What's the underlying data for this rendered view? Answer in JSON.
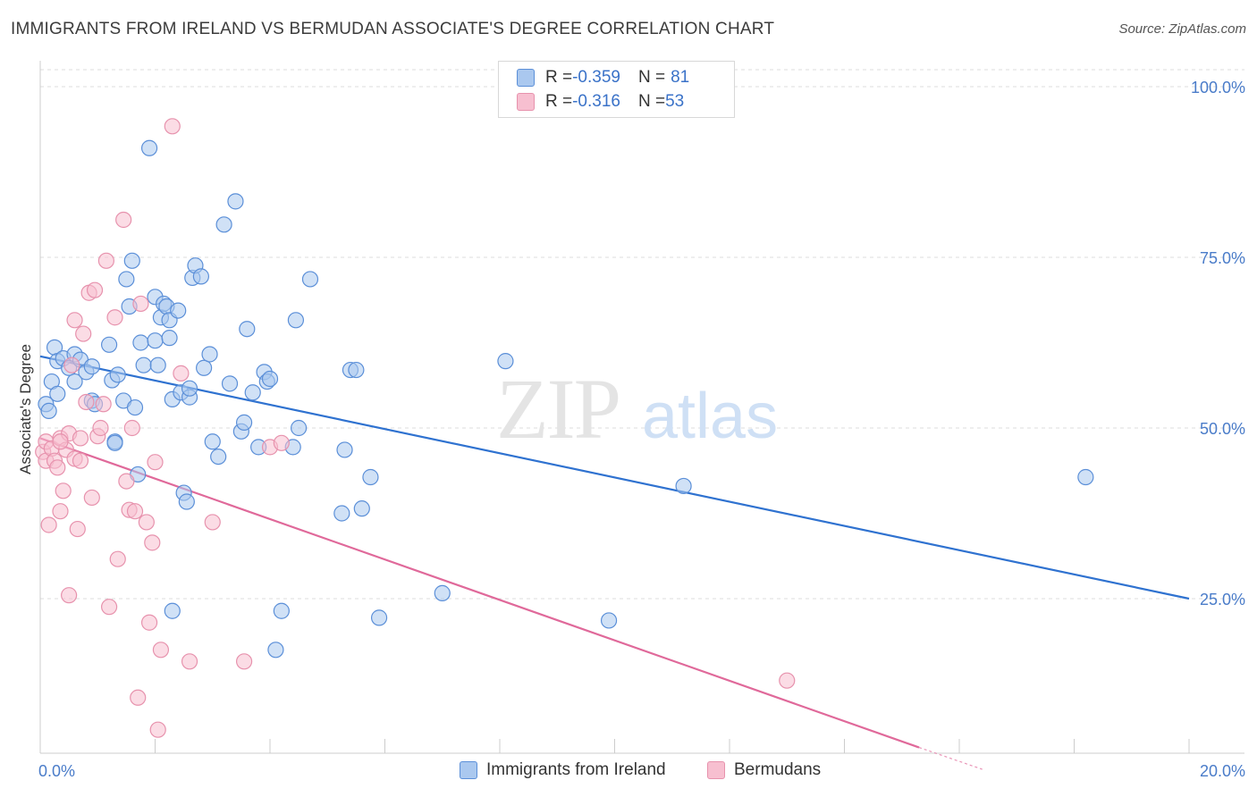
{
  "title": "IMMIGRANTS FROM IRELAND VS BERMUDAN ASSOCIATE'S DEGREE CORRELATION CHART",
  "source": "Source: ZipAtlas.com",
  "watermark": {
    "zip": "ZIP",
    "atlas": "atlas"
  },
  "colors": {
    "blue_fill": "#aac8ef",
    "blue_stroke": "#5b8fd8",
    "blue_line": "#2f72d0",
    "pink_fill": "#f7bfd0",
    "pink_stroke": "#e792ad",
    "pink_line": "#e0699a",
    "tick_text": "#4a7cc9",
    "grid": "#dcdcdc"
  },
  "legend": {
    "rows": [
      {
        "r_label": "R = ",
        "r_value": "-0.359",
        "n_label": "N = ",
        "n_value": "81"
      },
      {
        "r_label": "R = ",
        "r_value": "-0.316",
        "n_label": "N = ",
        "n_value": "53"
      }
    ]
  },
  "bottom_legend": {
    "series1": "Immigrants from Ireland",
    "series2": "Bermudans"
  },
  "chart_data": {
    "type": "scatter",
    "title": "IMMIGRANTS FROM IRELAND VS BERMUDAN ASSOCIATE'S DEGREE CORRELATION CHART",
    "xlabel": "",
    "ylabel": "Associate's Degree",
    "xlim": [
      0,
      20
    ],
    "ylim": [
      0,
      105
    ],
    "x_ticks": [
      "0.0%",
      "20.0%"
    ],
    "y_ticks": [
      {
        "value": 100,
        "label": "100.0%"
      },
      {
        "value": 75,
        "label": "75.0%"
      },
      {
        "value": 50,
        "label": "50.0%"
      },
      {
        "value": 25,
        "label": "25.0%"
      }
    ],
    "grid": true,
    "legend_position": "top-center",
    "series": [
      {
        "name": "Immigrants from Ireland",
        "color": "#5b8fd8",
        "r": -0.359,
        "n": 81,
        "trend": {
          "x": [
            0,
            20
          ],
          "y": [
            60.5,
            25.0
          ]
        },
        "points": [
          [
            0.1,
            53.5
          ],
          [
            0.15,
            52.5
          ],
          [
            0.2,
            56.8
          ],
          [
            0.25,
            61.8
          ],
          [
            0.3,
            59.8
          ],
          [
            0.3,
            55.0
          ],
          [
            0.4,
            60.2
          ],
          [
            0.5,
            58.8
          ],
          [
            0.6,
            56.8
          ],
          [
            0.6,
            60.8
          ],
          [
            0.7,
            60.0
          ],
          [
            0.8,
            58.2
          ],
          [
            0.9,
            59.0
          ],
          [
            0.9,
            54.0
          ],
          [
            0.95,
            53.5
          ],
          [
            1.2,
            62.2
          ],
          [
            1.25,
            57.0
          ],
          [
            1.3,
            48.0
          ],
          [
            1.35,
            57.8
          ],
          [
            1.3,
            47.8
          ],
          [
            1.45,
            54.0
          ],
          [
            1.5,
            71.8
          ],
          [
            1.55,
            67.8
          ],
          [
            1.6,
            74.5
          ],
          [
            1.65,
            53.0
          ],
          [
            1.7,
            43.2
          ],
          [
            1.75,
            62.5
          ],
          [
            1.8,
            59.2
          ],
          [
            1.9,
            91.0
          ],
          [
            2.0,
            62.8
          ],
          [
            2.0,
            69.2
          ],
          [
            2.05,
            59.2
          ],
          [
            2.1,
            66.2
          ],
          [
            2.15,
            68.2
          ],
          [
            2.2,
            67.8
          ],
          [
            2.25,
            63.2
          ],
          [
            2.25,
            65.8
          ],
          [
            2.3,
            54.2
          ],
          [
            2.4,
            67.2
          ],
          [
            2.45,
            55.2
          ],
          [
            2.5,
            40.5
          ],
          [
            2.55,
            39.2
          ],
          [
            2.6,
            54.5
          ],
          [
            2.6,
            55.8
          ],
          [
            2.65,
            72.0
          ],
          [
            2.7,
            73.8
          ],
          [
            2.8,
            72.2
          ],
          [
            2.85,
            58.8
          ],
          [
            2.95,
            60.8
          ],
          [
            3.0,
            48.0
          ],
          [
            3.1,
            45.8
          ],
          [
            3.2,
            79.8
          ],
          [
            3.3,
            56.5
          ],
          [
            3.4,
            83.2
          ],
          [
            3.5,
            49.5
          ],
          [
            3.55,
            50.8
          ],
          [
            3.6,
            64.5
          ],
          [
            3.7,
            55.2
          ],
          [
            3.8,
            47.2
          ],
          [
            3.9,
            58.2
          ],
          [
            3.95,
            56.8
          ],
          [
            4.0,
            57.2
          ],
          [
            4.2,
            23.2
          ],
          [
            4.1,
            17.5
          ],
          [
            4.4,
            47.2
          ],
          [
            4.45,
            65.8
          ],
          [
            4.5,
            50.0
          ],
          [
            4.7,
            71.8
          ],
          [
            5.25,
            37.5
          ],
          [
            5.3,
            46.8
          ],
          [
            5.4,
            58.5
          ],
          [
            5.5,
            58.5
          ],
          [
            5.6,
            38.2
          ],
          [
            5.75,
            42.8
          ],
          [
            2.3,
            23.2
          ],
          [
            5.9,
            22.2
          ],
          [
            7.0,
            25.8
          ],
          [
            8.1,
            59.8
          ],
          [
            9.9,
            21.8
          ],
          [
            11.2,
            41.5
          ],
          [
            18.2,
            42.8
          ]
        ]
      },
      {
        "name": "Bermudans",
        "color": "#e792ad",
        "r": -0.316,
        "n": 53,
        "trend": {
          "x": [
            0,
            15.3
          ],
          "y": [
            48.5,
            3.2
          ]
        },
        "trend_dashed": {
          "x": [
            15.3,
            16.4
          ],
          "y": [
            3.2,
            0.0
          ]
        },
        "points": [
          [
            0.05,
            46.5
          ],
          [
            0.1,
            48.0
          ],
          [
            0.1,
            45.2
          ],
          [
            0.15,
            35.8
          ],
          [
            0.2,
            47.0
          ],
          [
            0.25,
            45.2
          ],
          [
            0.3,
            44.2
          ],
          [
            0.35,
            48.5
          ],
          [
            0.35,
            37.8
          ],
          [
            0.4,
            40.8
          ],
          [
            0.45,
            46.8
          ],
          [
            0.5,
            49.2
          ],
          [
            0.55,
            59.2
          ],
          [
            0.6,
            65.8
          ],
          [
            0.65,
            35.2
          ],
          [
            0.7,
            48.5
          ],
          [
            0.75,
            63.8
          ],
          [
            0.8,
            53.8
          ],
          [
            0.85,
            69.8
          ],
          [
            0.9,
            39.8
          ],
          [
            0.95,
            70.2
          ],
          [
            1.0,
            48.8
          ],
          [
            1.05,
            50.0
          ],
          [
            1.1,
            53.5
          ],
          [
            1.15,
            74.5
          ],
          [
            1.2,
            23.8
          ],
          [
            1.3,
            66.2
          ],
          [
            1.35,
            30.8
          ],
          [
            1.45,
            80.5
          ],
          [
            1.5,
            42.2
          ],
          [
            1.55,
            38.0
          ],
          [
            1.6,
            50.0
          ],
          [
            1.65,
            37.8
          ],
          [
            1.7,
            10.5
          ],
          [
            1.75,
            68.2
          ],
          [
            1.85,
            36.2
          ],
          [
            1.9,
            21.5
          ],
          [
            1.95,
            33.2
          ],
          [
            2.0,
            45.0
          ],
          [
            2.05,
            5.8
          ],
          [
            2.1,
            17.5
          ],
          [
            2.3,
            94.2
          ],
          [
            2.45,
            58.0
          ],
          [
            2.6,
            15.8
          ],
          [
            3.0,
            36.2
          ],
          [
            3.55,
            15.8
          ],
          [
            4.0,
            47.2
          ],
          [
            4.2,
            47.8
          ],
          [
            0.5,
            25.5
          ],
          [
            0.35,
            48.0
          ],
          [
            0.6,
            45.5
          ],
          [
            0.7,
            45.2
          ],
          [
            13.0,
            13.0
          ]
        ]
      }
    ]
  }
}
